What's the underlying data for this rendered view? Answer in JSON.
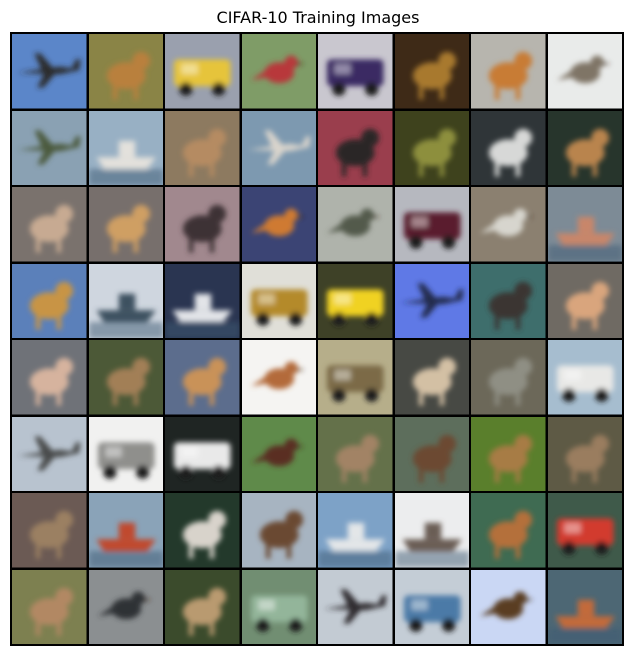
{
  "title": "CIFAR-10 Training Images",
  "images": [
    {
      "bg": "#5b86c9",
      "fg": "#2c2b2a",
      "shape": "airplane"
    },
    {
      "bg": "#8a8446",
      "fg": "#b9803d",
      "shape": "animal"
    },
    {
      "bg": "#9aa0ae",
      "fg": "#e6c43a",
      "shape": "vehicle"
    },
    {
      "bg": "#7f9c67",
      "fg": "#b8373a",
      "shape": "bird"
    },
    {
      "bg": "#c9c7cf",
      "fg": "#3b2a63",
      "shape": "vehicle"
    },
    {
      "bg": "#3e2a17",
      "fg": "#a8792f",
      "shape": "animal"
    },
    {
      "bg": "#b7b5ae",
      "fg": "#c87b35",
      "shape": "animal"
    },
    {
      "bg": "#e9ebea",
      "fg": "#7f7466",
      "shape": "bird"
    },
    {
      "bg": "#8aa1b3",
      "fg": "#4b5a3e",
      "shape": "airplane"
    },
    {
      "bg": "#98b0c4",
      "fg": "#e3e1dc",
      "shape": "ship"
    },
    {
      "bg": "#8d7a60",
      "fg": "#b58b62",
      "shape": "animal"
    },
    {
      "bg": "#7d99b0",
      "fg": "#d9d4cc",
      "shape": "airplane"
    },
    {
      "bg": "#9a3e4d",
      "fg": "#2c2628",
      "shape": "animal"
    },
    {
      "bg": "#3e421d",
      "fg": "#8d8f3d",
      "shape": "animal"
    },
    {
      "bg": "#2f3538",
      "fg": "#d7d8d7",
      "shape": "animal"
    },
    {
      "bg": "#27352c",
      "fg": "#b9844e",
      "shape": "animal"
    },
    {
      "bg": "#7a726d",
      "fg": "#c7aa92",
      "shape": "animal"
    },
    {
      "bg": "#776f6c",
      "fg": "#cf9f63",
      "shape": "animal"
    },
    {
      "bg": "#a1888e",
      "fg": "#3e3034",
      "shape": "animal"
    },
    {
      "bg": "#3b4474",
      "fg": "#cf7a33",
      "shape": "bird"
    },
    {
      "bg": "#afb3ab",
      "fg": "#535a4b",
      "shape": "bird"
    },
    {
      "bg": "#b6b8bf",
      "fg": "#5a1f2d",
      "shape": "vehicle"
    },
    {
      "bg": "#8b8070",
      "fg": "#d7d5ce",
      "shape": "bird"
    },
    {
      "bg": "#7d8b96",
      "fg": "#c8866a",
      "shape": "ship"
    },
    {
      "bg": "#5b80ba",
      "fg": "#c89445",
      "shape": "animal"
    },
    {
      "bg": "#cfd6df",
      "fg": "#3d5160",
      "shape": "ship"
    },
    {
      "bg": "#2a3551",
      "fg": "#e2e4e8",
      "shape": "ship"
    },
    {
      "bg": "#e0dfd8",
      "fg": "#b48a2a",
      "shape": "vehicle"
    },
    {
      "bg": "#3e4127",
      "fg": "#f0d223",
      "shape": "vehicle"
    },
    {
      "bg": "#5f79e6",
      "fg": "#222a4c",
      "shape": "airplane"
    },
    {
      "bg": "#3e6e6c",
      "fg": "#3a3431",
      "shape": "animal"
    },
    {
      "bg": "#6f6a63",
      "fg": "#d9a57d",
      "shape": "animal"
    },
    {
      "bg": "#6f7278",
      "fg": "#d6b39e",
      "shape": "animal"
    },
    {
      "bg": "#4c5937",
      "fg": "#a27f57",
      "shape": "animal"
    },
    {
      "bg": "#5c6d8d",
      "fg": "#c99258",
      "shape": "animal"
    },
    {
      "bg": "#f5f4f2",
      "fg": "#b36a3b",
      "shape": "bird"
    },
    {
      "bg": "#b6ae8a",
      "fg": "#7b6a46",
      "shape": "vehicle"
    },
    {
      "bg": "#474944",
      "fg": "#d3c0a4",
      "shape": "animal"
    },
    {
      "bg": "#6c6859",
      "fg": "#8f8f84",
      "shape": "animal"
    },
    {
      "bg": "#a6bdcf",
      "fg": "#e8e8e6",
      "shape": "vehicle"
    },
    {
      "bg": "#b8c3cf",
      "fg": "#4a4b4c",
      "shape": "airplane"
    },
    {
      "bg": "#f1f1f0",
      "fg": "#8f8f8c",
      "shape": "vehicle"
    },
    {
      "bg": "#1f2523",
      "fg": "#e9e9e9",
      "shape": "vehicle"
    },
    {
      "bg": "#5f8a4a",
      "fg": "#5a2e24",
      "shape": "bird"
    },
    {
      "bg": "#64714a",
      "fg": "#a28365",
      "shape": "animal"
    },
    {
      "bg": "#5d6e5c",
      "fg": "#6c4a33",
      "shape": "animal"
    },
    {
      "bg": "#5a7f2c",
      "fg": "#a77b45",
      "shape": "animal"
    },
    {
      "bg": "#5e5a45",
      "fg": "#9a7d5e",
      "shape": "animal"
    },
    {
      "bg": "#6b5a54",
      "fg": "#9b8062",
      "shape": "animal"
    },
    {
      "bg": "#8aa3b8",
      "fg": "#c04a2d",
      "shape": "ship"
    },
    {
      "bg": "#23392b",
      "fg": "#d8d3cb",
      "shape": "animal"
    },
    {
      "bg": "#a7b4c1",
      "fg": "#6b4a33",
      "shape": "animal"
    },
    {
      "bg": "#7da2c7",
      "fg": "#e3e6e8",
      "shape": "ship"
    },
    {
      "bg": "#ecedee",
      "fg": "#6a5d55",
      "shape": "ship"
    },
    {
      "bg": "#3f6b52",
      "fg": "#b46f3a",
      "shape": "animal"
    },
    {
      "bg": "#3f5a4a",
      "fg": "#d23a2e",
      "shape": "vehicle"
    },
    {
      "bg": "#7d8050",
      "fg": "#b28863",
      "shape": "animal"
    },
    {
      "bg": "#8b8f91",
      "fg": "#2e3034",
      "shape": "bird"
    },
    {
      "bg": "#3b4b2c",
      "fg": "#b99a6f",
      "shape": "animal"
    },
    {
      "bg": "#718e72",
      "fg": "#93b59a",
      "shape": "vehicle"
    },
    {
      "bg": "#c3cbd3",
      "fg": "#2d2b2e",
      "shape": "airplane"
    },
    {
      "bg": "#c4cdd6",
      "fg": "#4b7aa7",
      "shape": "vehicle"
    },
    {
      "bg": "#cad7f4",
      "fg": "#5a3d22",
      "shape": "bird"
    },
    {
      "bg": "#4d6774",
      "fg": "#c26b3a",
      "shape": "ship"
    }
  ]
}
